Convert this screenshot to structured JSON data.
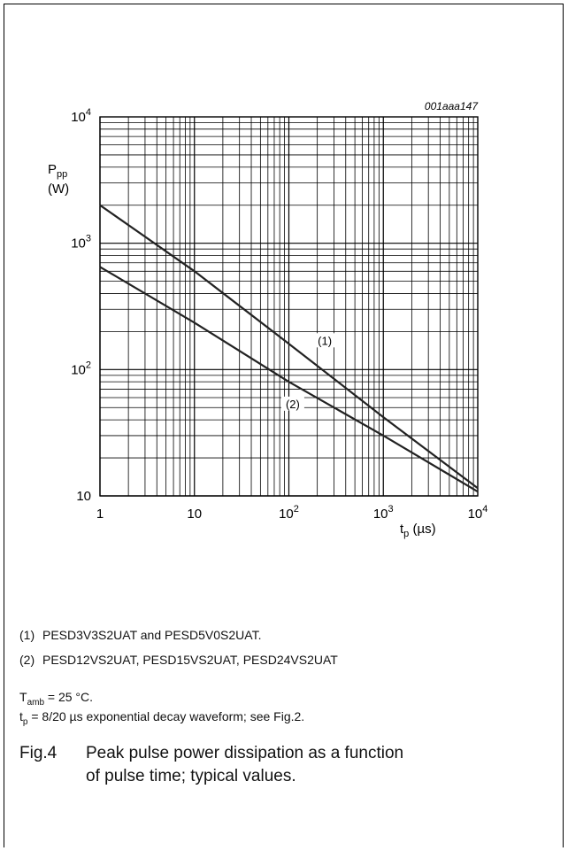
{
  "chart_data": {
    "type": "line",
    "ref_code": "001aaa147",
    "ylabel": {
      "main": "P",
      "sub": "pp",
      "unit": "(W)"
    },
    "xlabel": {
      "main": "t",
      "sub": "p",
      "unit": " (µs)"
    },
    "x_scale": "log",
    "y_scale": "log",
    "xlim": [
      1,
      10000
    ],
    "ylim": [
      10,
      10000
    ],
    "grid": true,
    "x_ticks": [
      {
        "value": 1,
        "base": "1",
        "exp": ""
      },
      {
        "value": 10,
        "base": "10",
        "exp": ""
      },
      {
        "value": 100,
        "base": "10",
        "exp": "2"
      },
      {
        "value": 1000,
        "base": "10",
        "exp": "3"
      },
      {
        "value": 10000,
        "base": "10",
        "exp": "4"
      }
    ],
    "y_ticks": [
      {
        "value": 10,
        "base": "10",
        "exp": ""
      },
      {
        "value": 100,
        "base": "10",
        "exp": "2"
      },
      {
        "value": 1000,
        "base": "10",
        "exp": "3"
      },
      {
        "value": 10000,
        "base": "10",
        "exp": "4"
      }
    ],
    "series": [
      {
        "name": "(1)",
        "label_at": [
          240,
          165
        ],
        "x": [
          1,
          10,
          100,
          1000,
          10000
        ],
        "y": [
          2000,
          600,
          160,
          42,
          11.5
        ]
      },
      {
        "name": "(2)",
        "label_at": [
          110,
          52
        ],
        "x": [
          1,
          10,
          100,
          1000,
          10000
        ],
        "y": [
          650,
          235,
          80,
          30,
          10.8
        ]
      }
    ]
  },
  "notes": [
    {
      "num": "(1)",
      "text": "PESD3V3S2UAT and PESD5V0S2UAT."
    },
    {
      "num": "(2)",
      "text": "PESD12VS2UAT, PESD15VS2UAT, PESD24VS2UAT"
    }
  ],
  "conditions": {
    "tamb": {
      "main": "T",
      "sub": "amb",
      "rest": " = 25 °C."
    },
    "tp": {
      "main": "t",
      "sub": "p",
      "rest": " = 8/20 µs exponential decay waveform; see Fig.2."
    }
  },
  "caption": {
    "fig": "Fig.4",
    "line1": "Peak pulse power dissipation as a function",
    "line2": "of pulse time; typical values."
  }
}
